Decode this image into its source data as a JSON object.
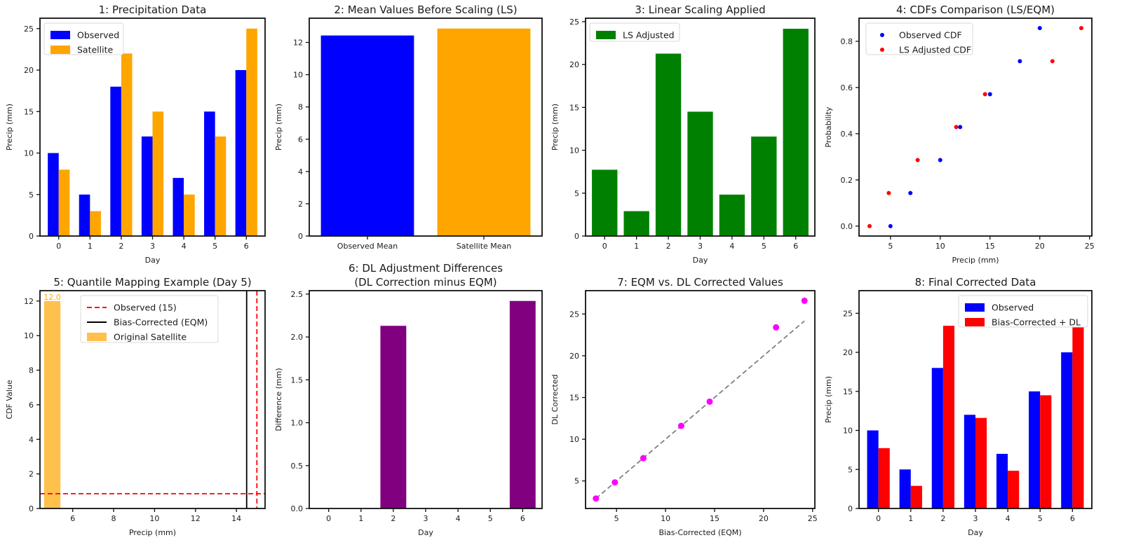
{
  "chart_data": [
    {
      "type": "bar",
      "title": "1: Precipitation Data",
      "xlabel": "Day",
      "ylabel": "Precip (mm)",
      "categories": [
        "0",
        "1",
        "2",
        "3",
        "4",
        "5",
        "6"
      ],
      "series": [
        {
          "name": "Observed",
          "color": "#0000ff",
          "values": [
            10,
            5,
            18,
            12,
            7,
            15,
            20
          ]
        },
        {
          "name": "Satellite",
          "color": "#ffa500",
          "values": [
            8,
            3,
            22,
            15,
            5,
            12,
            25
          ]
        }
      ],
      "ylim": [
        0,
        26.25
      ],
      "yticks": [
        "0",
        "5",
        "10",
        "15",
        "20",
        "25"
      ],
      "legend": "top-left"
    },
    {
      "type": "bar",
      "title": "2: Mean Values Before Scaling (LS)",
      "xlabel": "",
      "ylabel": "Precip (mm)",
      "categories": [
        "Observed Mean",
        "Satellite Mean"
      ],
      "values": [
        12.43,
        12.86
      ],
      "colors": [
        "#0000ff",
        "#ffa500"
      ],
      "ylim": [
        0,
        13.5
      ],
      "yticks": [
        "0",
        "2",
        "4",
        "6",
        "8",
        "10",
        "12"
      ]
    },
    {
      "type": "bar",
      "title": "3: Linear Scaling Applied",
      "xlabel": "Day",
      "ylabel": "Precip (mm)",
      "categories": [
        "0",
        "1",
        "2",
        "3",
        "4",
        "5",
        "6"
      ],
      "series": [
        {
          "name": "LS Adjusted",
          "color": "#008000",
          "values": [
            7.73,
            2.9,
            21.27,
            14.5,
            4.83,
            11.6,
            24.17
          ]
        }
      ],
      "ylim": [
        0,
        25.4
      ],
      "yticks": [
        "0",
        "5",
        "10",
        "15",
        "20",
        "25"
      ],
      "legend": "top-left"
    },
    {
      "type": "scatter",
      "title": "4: CDFs Comparison (LS/EQM)",
      "xlabel": "Precip (mm)",
      "ylabel": "Probability",
      "series": [
        {
          "name": "Observed CDF",
          "color": "#0000ff",
          "x": [
            5,
            7,
            10,
            12,
            15,
            18,
            20
          ],
          "y": [
            0,
            0.143,
            0.286,
            0.429,
            0.571,
            0.714,
            0.857
          ]
        },
        {
          "name": "LS Adjusted CDF",
          "color": "#ff0000",
          "x": [
            2.9,
            4.83,
            7.73,
            11.6,
            14.5,
            21.27,
            24.17
          ],
          "y": [
            0,
            0.143,
            0.286,
            0.429,
            0.571,
            0.714,
            0.857
          ]
        }
      ],
      "xlim": [
        1.84,
        25.23
      ],
      "ylim": [
        -0.043,
        0.9
      ],
      "xticks": [
        "5",
        "10",
        "15",
        "20",
        "25"
      ],
      "yticks": [
        "0.0",
        "0.2",
        "0.4",
        "0.6",
        "0.8"
      ],
      "legend": "top-left"
    },
    {
      "type": "bar",
      "title": "5: Quantile Mapping Example (Day 5)",
      "xlabel": "Precip (mm)",
      "ylabel": "CDF Value",
      "series": [
        {
          "name": "Original Satellite",
          "color": "#ffa500",
          "x": [
            5
          ],
          "values": [
            12
          ]
        }
      ],
      "lines": [
        {
          "name": "Observed (15)",
          "color": "#ff0000",
          "style": "dashed",
          "orientation": "vertical",
          "value": 15
        },
        {
          "name": "",
          "color": "#ff0000",
          "style": "dashed",
          "orientation": "horizontal",
          "value": 0.857
        },
        {
          "name": "Bias-Corrected (EQM)",
          "color": "#000000",
          "style": "solid",
          "orientation": "vertical",
          "value": 14.5
        }
      ],
      "data_labels": [
        "12.0"
      ],
      "xlim": [
        4.4,
        15.4
      ],
      "ylim": [
        0,
        12.6
      ],
      "xticks": [
        "6",
        "8",
        "10",
        "12",
        "14"
      ],
      "yticks": [
        "0",
        "2",
        "4",
        "6",
        "8",
        "10",
        "12"
      ],
      "legend": "top-center"
    },
    {
      "type": "bar",
      "title": "6: DL Adjustment Differences",
      "subtitle": "(DL Correction minus EQM)",
      "xlabel": "Day",
      "ylabel": "Difference (mm)",
      "categories": [
        "0",
        "1",
        "2",
        "3",
        "4",
        "5",
        "6"
      ],
      "values": [
        0,
        0,
        2.13,
        0,
        0,
        0,
        2.42
      ],
      "color": "#800080",
      "ylim": [
        0,
        2.54
      ],
      "yticks": [
        "0.0",
        "0.5",
        "1.0",
        "1.5",
        "2.0",
        "2.5"
      ]
    },
    {
      "type": "scatter",
      "title": "7: EQM vs. DL Corrected Values",
      "xlabel": "Bias-Corrected (EQM)",
      "ylabel": "DL Corrected",
      "series": [
        {
          "color": "#ff00ff",
          "x": [
            2.9,
            4.83,
            7.73,
            11.6,
            14.5,
            21.27,
            24.17
          ],
          "y": [
            2.9,
            4.83,
            7.73,
            11.6,
            14.5,
            23.4,
            26.59
          ]
        }
      ],
      "reference_line": {
        "color": "#808080",
        "style": "dashed",
        "x": [
          2.9,
          24.17
        ],
        "y": [
          2.9,
          24.17
        ]
      },
      "xlim": [
        1.84,
        25.23
      ],
      "ylim": [
        1.7,
        27.8
      ],
      "xticks": [
        "5",
        "10",
        "15",
        "20",
        "25"
      ],
      "yticks": [
        "5",
        "10",
        "15",
        "20",
        "25"
      ]
    },
    {
      "type": "bar",
      "title": "8: Final Corrected Data",
      "xlabel": "Day",
      "ylabel": "Precip (mm)",
      "categories": [
        "0",
        "1",
        "2",
        "3",
        "4",
        "5",
        "6"
      ],
      "series": [
        {
          "name": "Observed",
          "color": "#0000ff",
          "values": [
            10,
            5,
            18,
            12,
            7,
            15,
            20
          ]
        },
        {
          "name": "Bias-Corrected + DL",
          "color": "#ff0000",
          "values": [
            7.73,
            2.9,
            23.4,
            11.6,
            4.83,
            14.5,
            26.59
          ]
        }
      ],
      "ylim": [
        0,
        27.9
      ],
      "yticks": [
        "0",
        "5",
        "10",
        "15",
        "20",
        "25"
      ],
      "legend": "top-right"
    }
  ]
}
